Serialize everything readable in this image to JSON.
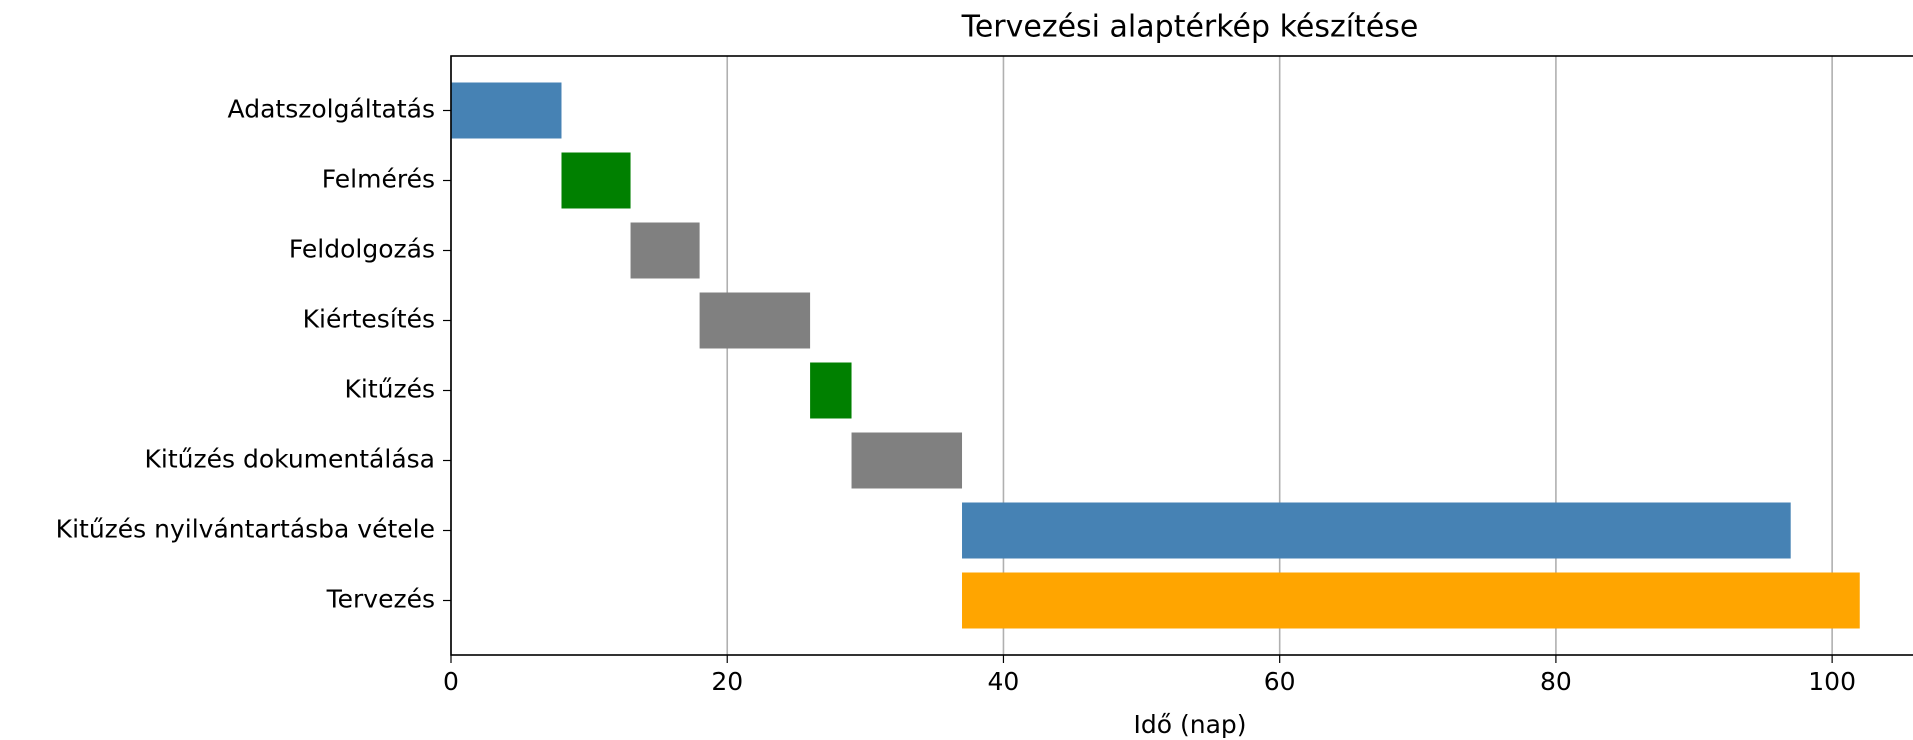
{
  "chart_data": {
    "type": "gantt",
    "title": "Tervezési alaptérkép készítése",
    "x_label": "Idő (nap)",
    "categories": [
      "Adatszolgáltatás",
      "Felmérés",
      "Feldolgozás",
      "Kiértesítés",
      "Kitűzés",
      "Kitűzés dokumentálása",
      "Kitűzés nyilvántartásba vétele",
      "Tervezés"
    ],
    "starts": [
      0,
      8,
      13,
      18,
      26,
      29,
      37,
      37
    ],
    "values": [
      8,
      5,
      5,
      8,
      3,
      8,
      60,
      65
    ],
    "colors": [
      "#4682b4",
      "#008000",
      "#808080",
      "#808080",
      "#008000",
      "#808080",
      "#4682b4",
      "#ffa500"
    ],
    "xlim": [
      0,
      106
    ],
    "xticks": [
      0,
      20,
      40,
      60,
      80,
      100
    ],
    "grid": true
  }
}
